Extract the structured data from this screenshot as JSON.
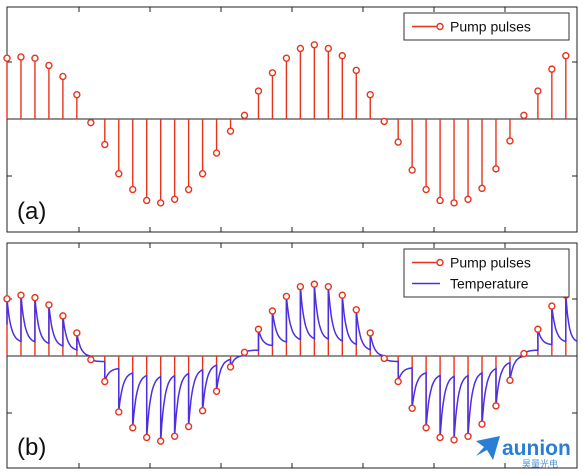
{
  "colors": {
    "pulse": "#e8331c",
    "temperature": "#4b2fe0",
    "axis": "#222222",
    "logo": "#2a7fd4"
  },
  "chart_data": [
    {
      "panel_label": "(a)",
      "type": "stem",
      "legend": [
        "Pump pulses"
      ],
      "legend_location": "top-right",
      "series": [
        {
          "name": "Pump pulses",
          "kind": "stem",
          "values": [
            0.5,
            0.51,
            0.5,
            0.44,
            0.35,
            0.2,
            -0.03,
            -0.21,
            -0.45,
            -0.58,
            -0.67,
            -0.69,
            -0.66,
            -0.58,
            -0.45,
            -0.28,
            -0.1,
            0.03,
            0.23,
            0.38,
            0.5,
            0.58,
            0.61,
            0.58,
            0.52,
            0.4,
            0.2,
            -0.02,
            -0.19,
            -0.42,
            -0.58,
            -0.67,
            -0.69,
            -0.66,
            -0.57,
            -0.41,
            -0.18,
            0.03,
            0.23,
            0.41,
            0.52
          ]
        }
      ],
      "xlim": [
        0,
        40.8
      ],
      "ylim": [
        -1.05,
        0.8
      ],
      "grid": false
    },
    {
      "panel_label": "(b)",
      "type": "stem+line",
      "legend": [
        "Pump pulses",
        "Temperature"
      ],
      "legend_location": "top-right",
      "series": [
        {
          "name": "Pump pulses",
          "kind": "stem",
          "values": [
            0.47,
            0.5,
            0.48,
            0.42,
            0.33,
            0.19,
            -0.03,
            -0.21,
            -0.46,
            -0.59,
            -0.67,
            -0.7,
            -0.66,
            -0.58,
            -0.45,
            -0.29,
            -0.09,
            0.03,
            0.22,
            0.37,
            0.49,
            0.57,
            0.59,
            0.57,
            0.5,
            0.38,
            0.19,
            -0.02,
            -0.21,
            -0.43,
            -0.59,
            -0.67,
            -0.69,
            -0.66,
            -0.56,
            -0.41,
            -0.2,
            0.02,
            0.22,
            0.41,
            0.5
          ]
        },
        {
          "name": "Temperature",
          "kind": "line",
          "decay_rate": 3.5
        }
      ],
      "xlim": [
        0,
        40.8
      ],
      "ylim": [
        -1.05,
        0.8
      ],
      "grid": false
    }
  ],
  "logo": {
    "name": "aunion",
    "subtitle": "昊量光电"
  }
}
